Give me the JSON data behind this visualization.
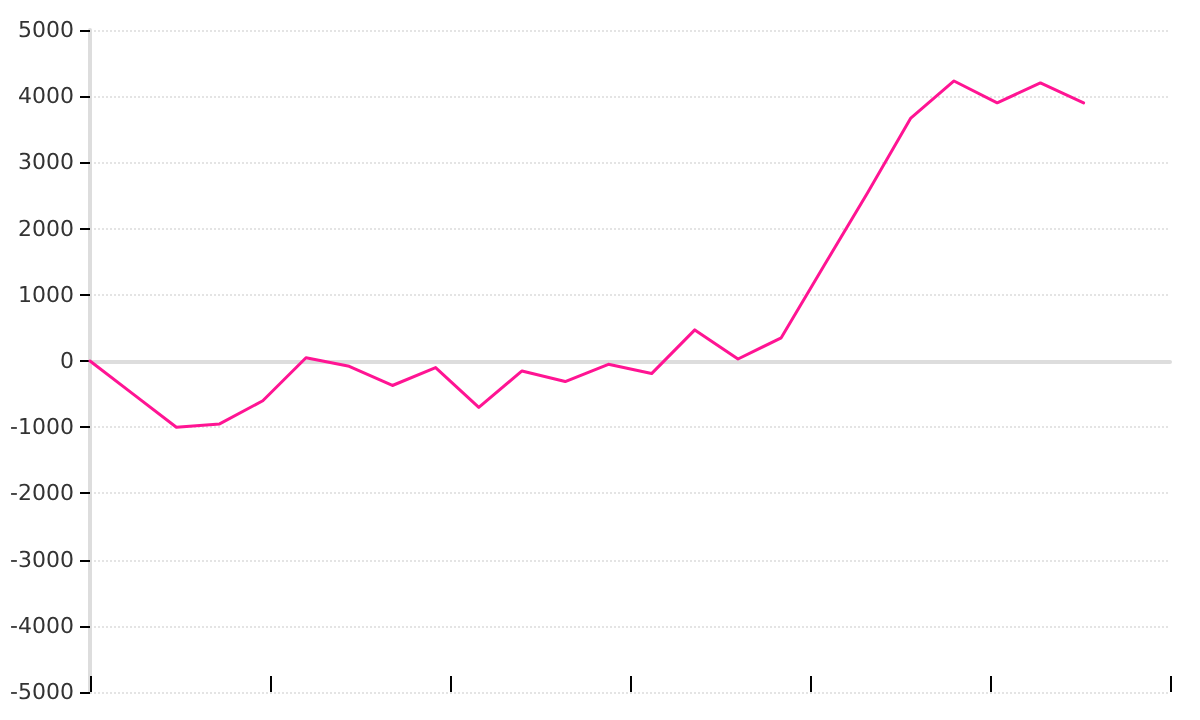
{
  "chart_data": {
    "type": "line",
    "categories": [
      null,
      null,
      null,
      null,
      null,
      null,
      null,
      null,
      null,
      null,
      null,
      null,
      null,
      null,
      null,
      null,
      null,
      null,
      null,
      null,
      null,
      null,
      null,
      null
    ],
    "series": [
      {
        "color": "#ff1493",
        "values": [
          0,
          -500,
          -1000,
          -950,
          -600,
          50,
          -80,
          -370,
          -100,
          -700,
          -150,
          -310,
          -50,
          -190,
          470,
          30,
          350,
          1450,
          2540,
          3670,
          4230,
          3900,
          4200,
          3900
        ]
      }
    ],
    "ylim": [
      -5000,
      5000
    ],
    "yticks": [
      -5000,
      -4000,
      -3000,
      -2000,
      -1000,
      0,
      1000,
      2000,
      3000,
      4000,
      5000
    ],
    "tick_labels": "y",
    "grid": "y",
    "marker": "none",
    "line_style": "solid"
  }
}
